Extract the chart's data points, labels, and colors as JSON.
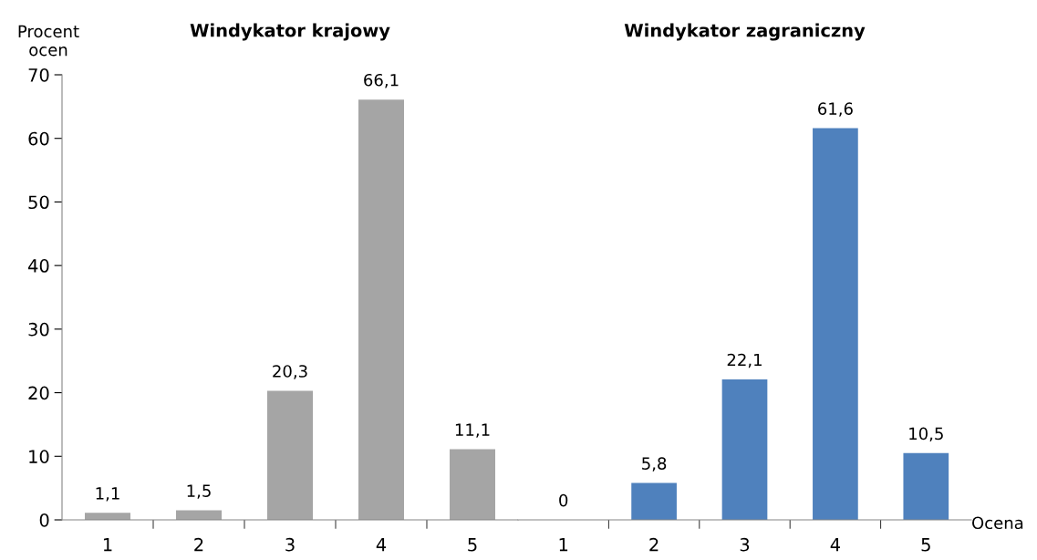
{
  "chart_data": [
    {
      "type": "bar",
      "title": "Windykator krajowy",
      "ylabel": "Procent\nocen",
      "categories": [
        "1",
        "2",
        "3",
        "4",
        "5"
      ],
      "values": [
        1.1,
        1.5,
        20.3,
        66.1,
        11.1
      ],
      "color": "#a5a5a5",
      "value_labels": [
        "1,1",
        "1,5",
        "20,3",
        "66,1",
        "11,1"
      ],
      "ylim": [
        0,
        70
      ],
      "yticks": [
        0,
        10,
        20,
        30,
        40,
        50,
        60,
        70
      ],
      "grid": false,
      "legend": false
    },
    {
      "type": "bar",
      "title": "Windykator zagraniczny",
      "xlabel": "Ocena",
      "categories": [
        "1",
        "2",
        "3",
        "4",
        "5"
      ],
      "values": [
        0,
        5.8,
        22.1,
        61.6,
        10.5
      ],
      "color": "#4f81bd",
      "value_labels": [
        "0",
        "5,8",
        "22,1",
        "61,6",
        "10,5"
      ],
      "ylim": [
        0,
        70
      ],
      "yticks": [
        0,
        10,
        20,
        30,
        40,
        50,
        60,
        70
      ],
      "tick_labels": "x",
      "grid": false,
      "legend": false
    }
  ]
}
